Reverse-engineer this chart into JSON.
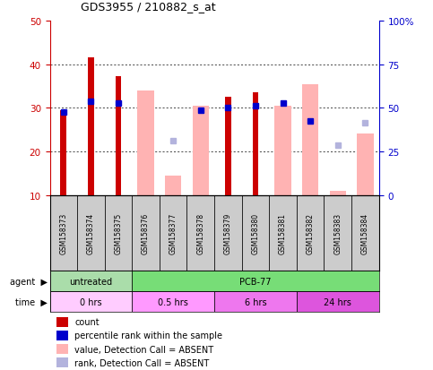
{
  "title": "GDS3955 / 210882_s_at",
  "samples": [
    "GSM158373",
    "GSM158374",
    "GSM158375",
    "GSM158376",
    "GSM158377",
    "GSM158378",
    "GSM158379",
    "GSM158380",
    "GSM158381",
    "GSM158382",
    "GSM158383",
    "GSM158384"
  ],
  "red_bars": [
    29.5,
    41.5,
    37.2,
    null,
    null,
    null,
    32.5,
    33.5,
    null,
    null,
    null,
    null
  ],
  "pink_bars": [
    null,
    null,
    null,
    34.0,
    14.5,
    30.5,
    null,
    null,
    30.5,
    35.5,
    11.0,
    24.0
  ],
  "blue_squares": [
    29.0,
    31.5,
    31.0,
    null,
    null,
    29.5,
    30.0,
    30.5,
    31.0,
    27.0,
    null,
    null
  ],
  "lavender_squares": [
    null,
    null,
    null,
    null,
    22.5,
    null,
    null,
    null,
    null,
    null,
    21.5,
    26.5
  ],
  "ylim_left": [
    10,
    50
  ],
  "ylim_right": [
    0,
    100
  ],
  "yticks_left": [
    10,
    20,
    30,
    40,
    50
  ],
  "yticks_right": [
    0,
    25,
    50,
    75,
    100
  ],
  "ytick_labels_right": [
    "0",
    "25",
    "50",
    "75",
    "100%"
  ],
  "red_color": "#cc0000",
  "pink_color": "#ffb3b3",
  "blue_color": "#0000cc",
  "lavender_color": "#b3b3dd",
  "left_axis_color": "#cc0000",
  "right_axis_color": "#0000cc",
  "background_color": "#ffffff",
  "untreated_color": "#77dd77",
  "pcb77_color": "#66cc66",
  "time_colors": [
    "#ffccff",
    "#ff99ff",
    "#ee66ee",
    "#dd44dd"
  ],
  "gray_color": "#cccccc"
}
